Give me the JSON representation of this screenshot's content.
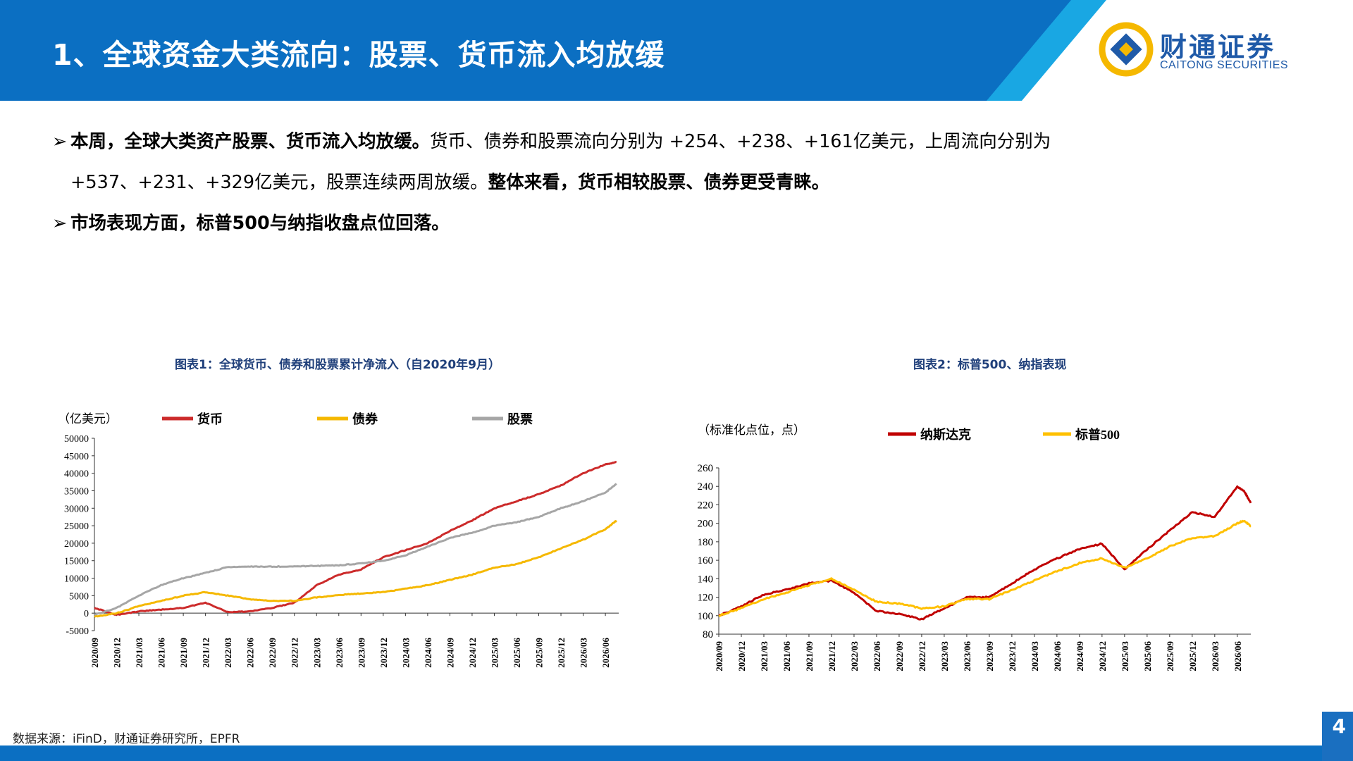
{
  "header": {
    "title": "1、全球资金大类流向：股票、货币流入均放缓",
    "logo_cn": "财通证券",
    "logo_en": "CAITONG SECURITIES"
  },
  "bullets": {
    "b1_bold": "本周，全球大类资产股票、货币流入均放缓。",
    "b1_text": "货币、债券和股票流向分别为 +254、+238、+161亿美元，上周流向分别为",
    "b1_cont": "+537、+231、+329亿美元，股票连续两周放缓。",
    "b1_bold2": "整体来看，货币相较股票、债券更受青睐。",
    "b2_bold": "市场表现方面，标普500与纳指收盘点位回落。"
  },
  "chart_data": [
    {
      "type": "line",
      "title": "图表1：全球货币、债券和股票累计净流入（自2020年9月）",
      "ylabel": "（亿美元）",
      "ylim": [
        -5000,
        50000
      ],
      "yticks": [
        -5000,
        0,
        5000,
        10000,
        15000,
        20000,
        25000,
        30000,
        35000,
        40000,
        45000,
        50000
      ],
      "categories": [
        "2020/09",
        "2020/12",
        "2021/03",
        "2021/06",
        "2021/09",
        "2021/12",
        "2022/03",
        "2022/06",
        "2022/09",
        "2022/12",
        "2023/03",
        "2023/06",
        "2023/09",
        "2023/12",
        "2024/03",
        "2024/06",
        "2024/09",
        "2024/12",
        "2025/03",
        "2025/06",
        "2025/09",
        "2025/12",
        "2026/03",
        "2026/06"
      ],
      "legend_position": "top",
      "series": [
        {
          "name": "货币",
          "color": "#cc2b2b",
          "x": [
            0,
            1,
            2,
            3,
            4,
            5,
            6,
            7,
            8,
            9,
            10,
            11,
            12,
            13,
            14,
            15,
            16,
            17,
            18,
            19,
            20,
            21,
            22,
            23,
            23.5
          ],
          "values": [
            1500,
            -500,
            500,
            1000,
            1500,
            3000,
            300,
            500,
            1500,
            3000,
            8000,
            11000,
            12500,
            16000,
            18000,
            20000,
            23500,
            26500,
            30000,
            32000,
            34000,
            36500,
            40000,
            42500,
            43200
          ]
        },
        {
          "name": "债券",
          "color": "#f5b800",
          "x": [
            0,
            1,
            2,
            3,
            4,
            5,
            6,
            7,
            8,
            9,
            10,
            11,
            12,
            13,
            14,
            15,
            16,
            17,
            18,
            19,
            20,
            21,
            22,
            23,
            23.5
          ],
          "values": [
            -1000,
            0,
            2000,
            3500,
            5000,
            6000,
            5000,
            4000,
            3500,
            3500,
            4500,
            5200,
            5600,
            6000,
            7000,
            8000,
            9500,
            11000,
            13000,
            14000,
            16000,
            18500,
            21000,
            24000,
            26500
          ]
        },
        {
          "name": "股票",
          "color": "#a6a6a6",
          "x": [
            0,
            1,
            2,
            3,
            4,
            5,
            6,
            7,
            8,
            9,
            10,
            11,
            12,
            13,
            14,
            15,
            16,
            17,
            18,
            19,
            20,
            21,
            22,
            23,
            23.5
          ],
          "values": [
            -500,
            1500,
            5000,
            8000,
            10000,
            11500,
            13200,
            13300,
            13300,
            13400,
            13500,
            13700,
            14200,
            15000,
            16500,
            19000,
            21500,
            23000,
            25000,
            26000,
            27500,
            30000,
            32000,
            34500,
            37000
          ]
        }
      ]
    },
    {
      "type": "line",
      "title": "图表2：标普500、纳指表现",
      "ylabel": "（标准化点位，点）",
      "ylim": [
        80,
        260
      ],
      "yticks": [
        80,
        100,
        120,
        140,
        160,
        180,
        200,
        220,
        240,
        260
      ],
      "categories": [
        "2020/09",
        "2020/12",
        "2021/03",
        "2021/06",
        "2021/09",
        "2021/12",
        "2022/03",
        "2022/06",
        "2022/09",
        "2022/12",
        "2023/03",
        "2023/06",
        "2023/09",
        "2023/12",
        "2024/03",
        "2024/06",
        "2024/09",
        "2024/12",
        "2025/03",
        "2025/06",
        "2025/09",
        "2025/12",
        "2026/03",
        "2026/06"
      ],
      "legend_position": "top",
      "series": [
        {
          "name": "纳斯达克",
          "color": "#c00000",
          "x": [
            0,
            1,
            2,
            3,
            4,
            5,
            6,
            7,
            8,
            9,
            10,
            11,
            12,
            13,
            14,
            15,
            16,
            17,
            18,
            19,
            20,
            21,
            22,
            23,
            23.3,
            23.6
          ],
          "values": [
            100,
            110,
            123,
            128,
            135,
            138,
            125,
            105,
            102,
            96,
            108,
            120,
            120,
            135,
            150,
            162,
            172,
            178,
            150,
            172,
            192,
            212,
            207,
            240,
            235,
            222
          ]
        },
        {
          "name": "标普500",
          "color": "#ffc000",
          "x": [
            0,
            1,
            2,
            3,
            4,
            5,
            6,
            7,
            8,
            9,
            10,
            11,
            12,
            13,
            14,
            15,
            16,
            17,
            18,
            19,
            20,
            21,
            22,
            23,
            23.3,
            23.6
          ],
          "values": [
            100,
            108,
            118,
            125,
            133,
            140,
            128,
            115,
            113,
            108,
            110,
            118,
            118,
            128,
            138,
            148,
            157,
            162,
            152,
            162,
            175,
            184,
            186,
            200,
            203,
            197
          ]
        }
      ]
    }
  ],
  "footer": {
    "source": "数据来源：iFinD，财通证券研究所，EPFR",
    "page_number": "4"
  }
}
